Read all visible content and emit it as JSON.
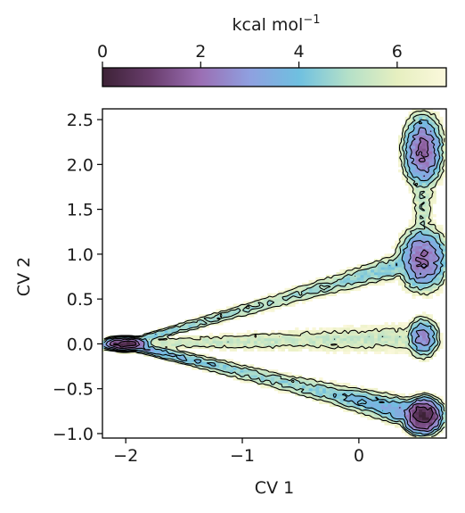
{
  "chart_data": {
    "type": "heatmap",
    "title": "",
    "xlabel": "CV 1",
    "ylabel": "CV 2",
    "xlim": [
      -2.2,
      0.75
    ],
    "ylim": [
      -1.05,
      2.62
    ],
    "xticks": [
      -2,
      -1,
      0
    ],
    "xtick_labels": [
      "−2",
      "−1",
      "0"
    ],
    "yticks": [
      -1.0,
      -0.5,
      0.0,
      0.5,
      1.0,
      1.5,
      2.0,
      2.5
    ],
    "ytick_labels": [
      "−1.0",
      "−0.5",
      "0.0",
      "0.5",
      "1.0",
      "1.5",
      "2.0",
      "2.5"
    ],
    "colorbar": {
      "label": "kcal mol",
      "label_superscript": "−1",
      "min": 0,
      "max": 7,
      "ticks": [
        0,
        2,
        4,
        6
      ],
      "tick_labels": [
        "0",
        "2",
        "4",
        "6"
      ],
      "location": "top",
      "colormap": [
        "#3d2236",
        "#6a3e6e",
        "#9b6fb4",
        "#8fa0e0",
        "#6fc0e0",
        "#b4e0c8",
        "#e6efc0",
        "#fbf8dc"
      ]
    },
    "basins": [
      {
        "x": -2.0,
        "y": 0.0,
        "min_energy": 0.3
      },
      {
        "x": 0.55,
        "y": -0.8,
        "min_energy": 0.1
      },
      {
        "x": 0.55,
        "y": 0.07,
        "min_energy": 2.5
      },
      {
        "x": 0.55,
        "y": 0.95,
        "min_energy": 2.0
      },
      {
        "x": 0.55,
        "y": 2.15,
        "min_energy": 1.8
      }
    ],
    "contour_levels": [
      1,
      2,
      3,
      4,
      5,
      6
    ],
    "grid": false
  }
}
